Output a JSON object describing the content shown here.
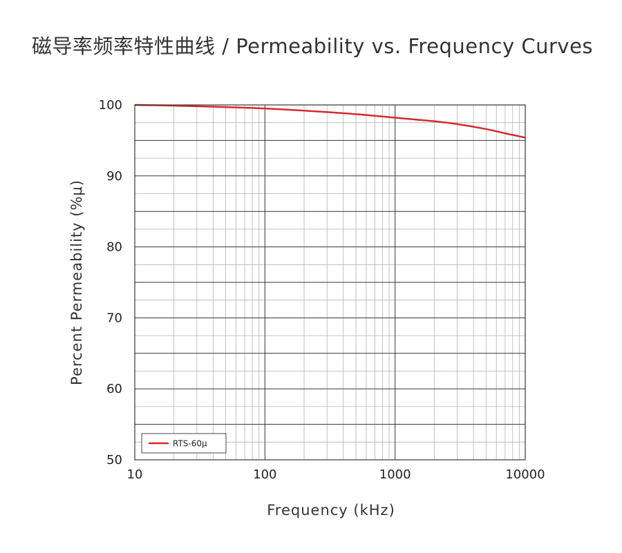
{
  "chart_data": {
    "type": "line",
    "title": "磁导率频率特性曲线 / Permeability vs. Frequency Curves",
    "xlabel": "Frequency (kHz)",
    "ylabel": "Percent Permeability (%μ)",
    "xscale": "log",
    "xlim": [
      10,
      10000
    ],
    "ylim": [
      50,
      100
    ],
    "xticks": [
      "10",
      "100",
      "1000",
      "10000"
    ],
    "yticks": [
      "100",
      "90",
      "80",
      "70",
      "60",
      "50"
    ],
    "grid": true,
    "legend_position": "bottom-left",
    "series": [
      {
        "name": "RTS-60μ",
        "color": "#d42a2a",
        "x": [
          10,
          20,
          50,
          100,
          200,
          500,
          1000,
          2000,
          3000,
          5000,
          7000,
          10000
        ],
        "y": [
          100,
          99.9,
          99.7,
          99.5,
          99.2,
          98.7,
          98.2,
          97.7,
          97.3,
          96.6,
          96.0,
          95.4
        ]
      }
    ]
  }
}
